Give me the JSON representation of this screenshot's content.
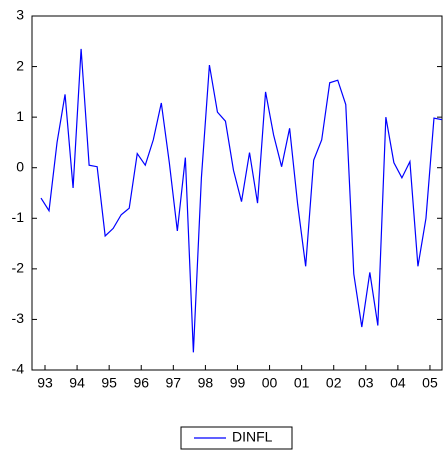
{
  "chart_data": {
    "type": "line",
    "categories": [
      "93",
      null,
      null,
      null,
      "94",
      null,
      null,
      null,
      "95",
      null,
      null,
      null,
      "96",
      null,
      null,
      null,
      "97",
      null,
      null,
      null,
      "98",
      null,
      null,
      null,
      "99",
      null,
      null,
      null,
      "00",
      null,
      null,
      null,
      "01",
      null,
      null,
      null,
      "02",
      null,
      null,
      null,
      "03",
      null,
      null,
      null,
      "04",
      null,
      null,
      null,
      "05",
      null,
      null
    ],
    "series": [
      {
        "name": "DINFL",
        "color": "#0000ff",
        "values": [
          -0.6,
          -0.85,
          0.5,
          1.45,
          -0.4,
          2.35,
          0.05,
          0.02,
          -1.35,
          -1.2,
          -0.93,
          -0.8,
          0.28,
          0.05,
          0.55,
          1.28,
          0.1,
          -1.25,
          0.2,
          -3.65,
          -0.2,
          2.03,
          1.1,
          0.92,
          -0.05,
          -0.67,
          0.3,
          -0.7,
          1.5,
          0.65,
          0.02,
          0.78,
          -0.72,
          -1.95,
          0.15,
          0.55,
          1.68,
          1.73,
          1.25,
          -2.1,
          -3.15,
          -2.07,
          -3.12,
          1.0,
          0.1,
          -0.2,
          0.12,
          -1.95,
          -1.0,
          0.98,
          0.95
        ]
      }
    ],
    "ylim": [
      -4,
      3
    ],
    "yticks": [
      -4,
      -3,
      -2,
      -1,
      0,
      1,
      2,
      3
    ],
    "grid": false
  }
}
